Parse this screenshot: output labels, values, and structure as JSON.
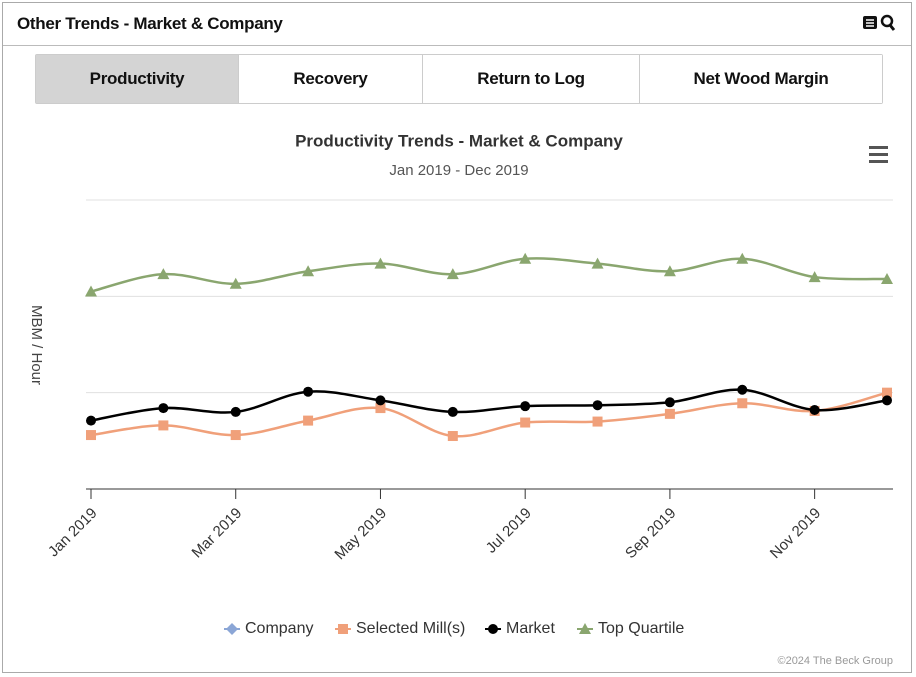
{
  "header": {
    "title": "Other Trends - Market & Company"
  },
  "tabs": [
    "Productivity",
    "Recovery",
    "Return to Log",
    "Net Wood Margin"
  ],
  "credit": "©2024 The Beck Group",
  "chart_data": {
    "type": "line",
    "title": "Productivity Trends - Market & Company",
    "subtitle": "Jan 2019 - Dec 2019",
    "ylabel": "MBM / Hour",
    "categories": [
      "Jan 2019",
      null,
      "Mar 2019",
      null,
      "May 2019",
      null,
      "Jul 2019",
      null,
      "Sep 2019",
      null,
      "Nov 2019",
      null
    ],
    "ylim": [
      0,
      3
    ],
    "yticks": [
      0,
      1,
      2,
      3
    ],
    "grid": true,
    "legend": "bottom",
    "series": [
      {
        "name": "Company",
        "color": "#8ba6d6",
        "marker": "diamond",
        "values": [
          null,
          null,
          null,
          null,
          null,
          null,
          null,
          null,
          null,
          null,
          null,
          null
        ]
      },
      {
        "name": "Selected Mill(s)",
        "color": "#f0a07a",
        "marker": "square",
        "values": [
          0.56,
          0.66,
          0.56,
          0.71,
          0.84,
          0.55,
          0.69,
          0.7,
          0.78,
          0.89,
          0.81,
          1.0
        ]
      },
      {
        "name": "Market",
        "color": "#000000",
        "marker": "circle",
        "values": [
          0.71,
          0.84,
          0.8,
          1.01,
          0.92,
          0.8,
          0.86,
          0.87,
          0.9,
          1.03,
          0.82,
          0.92
        ]
      },
      {
        "name": "Top Quartile",
        "color": "#8aa66f",
        "marker": "triangle",
        "values": [
          2.05,
          2.23,
          2.13,
          2.26,
          2.34,
          2.23,
          2.39,
          2.34,
          2.26,
          2.39,
          2.2,
          2.18
        ]
      }
    ]
  }
}
